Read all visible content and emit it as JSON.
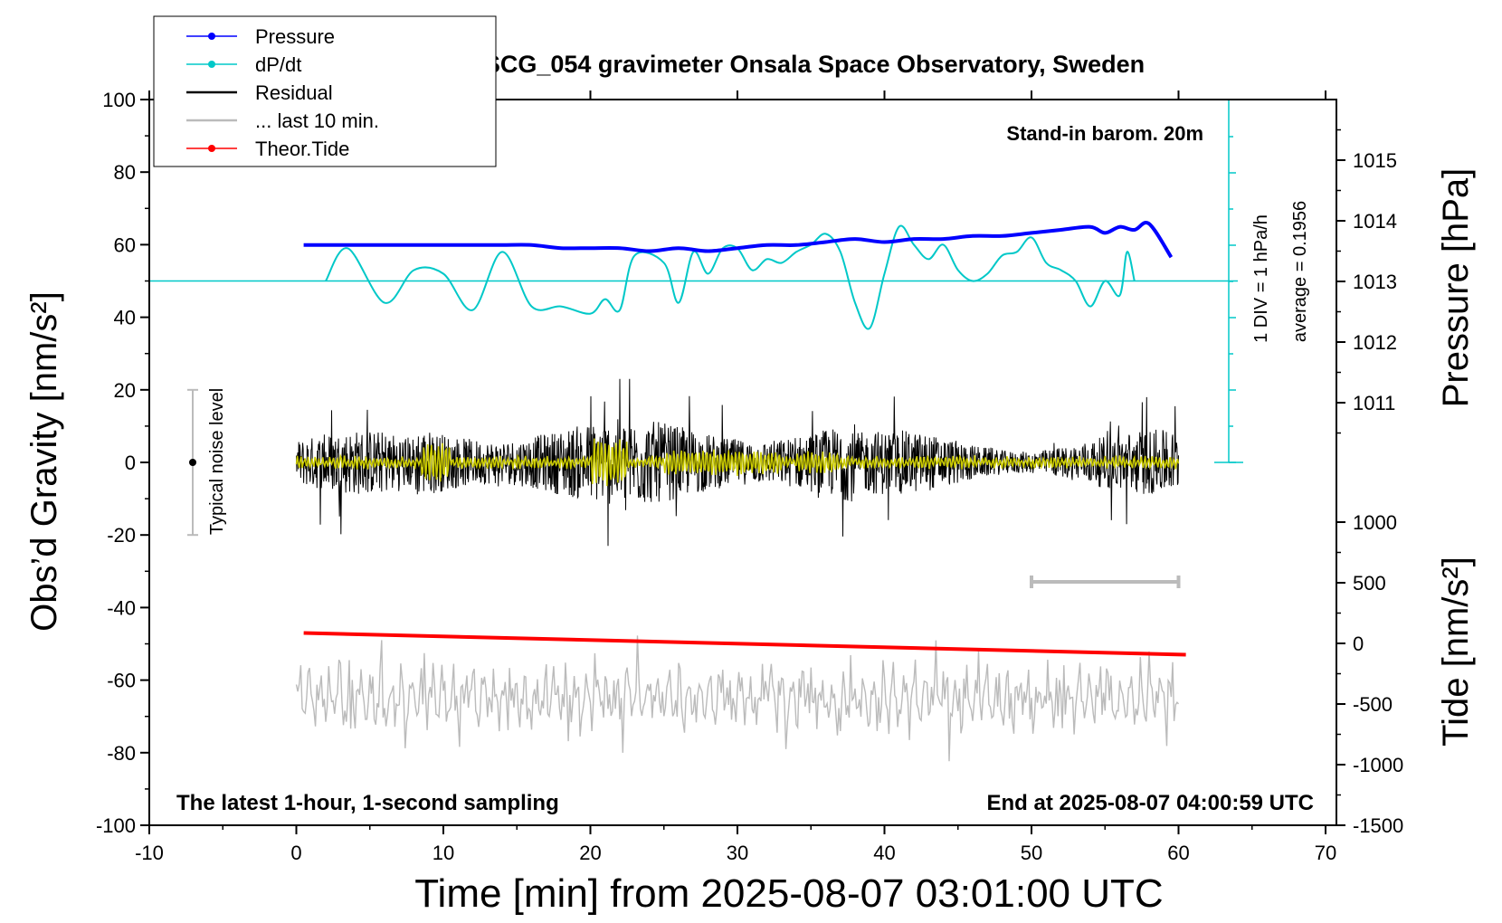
{
  "chart_data": {
    "type": "line",
    "title": "SCG_054 gravimeter Onsala Space Observatory, Sweden",
    "xlabel": "Time [min] from 2025-08-07 03:01:00 UTC",
    "ylabel_left": "Obs’d Gravity [nm/s²]",
    "ylabel_pressure": "Pressure [hPa]",
    "ylabel_tide": "Tide [nm/s²]",
    "xlim": [
      -10,
      70
    ],
    "ylim_left": [
      -100,
      100
    ],
    "x_ticks": [
      "-10",
      "0",
      "10",
      "20",
      "30",
      "40",
      "50",
      "60",
      "70"
    ],
    "y_ticks_left": [
      "100",
      "80",
      "60",
      "40",
      "20",
      "0",
      "-20",
      "-40",
      "-60",
      "-80",
      "-100"
    ],
    "pressure_ticks": [
      "1015",
      "1014",
      "1013",
      "1012",
      "1011"
    ],
    "tide_ticks": [
      "1000",
      "500",
      "0",
      "-500",
      "-1000",
      "-1500"
    ],
    "grid": false,
    "legend_position": "top-left",
    "legend": [
      {
        "label": "Pressure",
        "color": "#0000ff",
        "marker": true
      },
      {
        "label": "dP/dt",
        "color": "#00c8c8",
        "marker": true
      },
      {
        "label": "Residual",
        "color": "#000000",
        "marker": false
      },
      {
        "label": "... last 10 min.",
        "color": "#bbbbbb",
        "marker": false
      },
      {
        "label": "Theor.Tide",
        "color": "#ff0000",
        "marker": true
      }
    ],
    "annotations": {
      "barometer": "Stand-in barom. 20m",
      "div_label": "1 DIV = 1 hPa/h",
      "average_label": "average = 0.1956",
      "noise_label": "Typical noise level",
      "bottom_left": "The latest 1-hour, 1-second sampling",
      "bottom_right": "End at 2025-08-07 04:00:59 UTC"
    },
    "series": [
      {
        "name": "Pressure",
        "color": "#0000ff",
        "x": [
          0.5,
          2,
          4,
          6,
          8,
          10,
          12,
          14,
          16,
          18,
          20,
          22,
          24,
          26,
          28,
          30,
          32,
          34,
          36,
          38,
          40,
          42,
          44,
          46,
          48,
          50,
          52,
          54,
          55,
          56,
          57,
          58,
          59.5
        ],
        "y": [
          1013.6,
          1013.6,
          1013.6,
          1013.6,
          1013.6,
          1013.6,
          1013.6,
          1013.6,
          1013.6,
          1013.55,
          1013.55,
          1013.55,
          1013.5,
          1013.55,
          1013.5,
          1013.55,
          1013.6,
          1013.6,
          1013.65,
          1013.7,
          1013.65,
          1013.7,
          1013.7,
          1013.75,
          1013.75,
          1013.8,
          1013.85,
          1013.9,
          1013.8,
          1013.9,
          1013.85,
          1013.95,
          1013.4
        ]
      },
      {
        "name": "dP/dt",
        "color": "#00c8c8",
        "baseline": 50,
        "x": [
          2,
          3.5,
          6,
          8,
          10,
          12,
          14,
          16,
          18,
          20,
          21,
          22,
          23,
          25,
          26,
          27,
          28,
          29,
          30,
          31,
          32,
          33,
          34,
          35,
          36,
          37,
          38,
          39,
          40,
          41,
          42,
          43,
          44,
          45,
          46,
          47,
          48,
          49,
          50,
          51,
          52,
          53,
          54,
          55,
          56,
          56.5,
          57
        ],
        "y": [
          50,
          59,
          44,
          53,
          52,
          42,
          58,
          43,
          43,
          41,
          45,
          42,
          57,
          55,
          44,
          58,
          52,
          59,
          59,
          53,
          56,
          55,
          58,
          60,
          63,
          58,
          44,
          37,
          52,
          65,
          60,
          56,
          60,
          53,
          50,
          52,
          57,
          58,
          62,
          55,
          53,
          50,
          43,
          50,
          46,
          58,
          50
        ]
      },
      {
        "name": "Residual",
        "color": "#000000",
        "description_range": [
          -23,
          23
        ],
        "x_range": [
          0,
          60
        ]
      },
      {
        "name": "... last 10 min.",
        "color": "#bbbbbb",
        "description_range": [
          -78,
          -52
        ],
        "x_range": [
          0,
          60
        ]
      },
      {
        "name": "Theor.Tide",
        "color": "#ff0000",
        "x": [
          0.5,
          60.5
        ],
        "y": [
          -47,
          -53
        ]
      }
    ]
  }
}
